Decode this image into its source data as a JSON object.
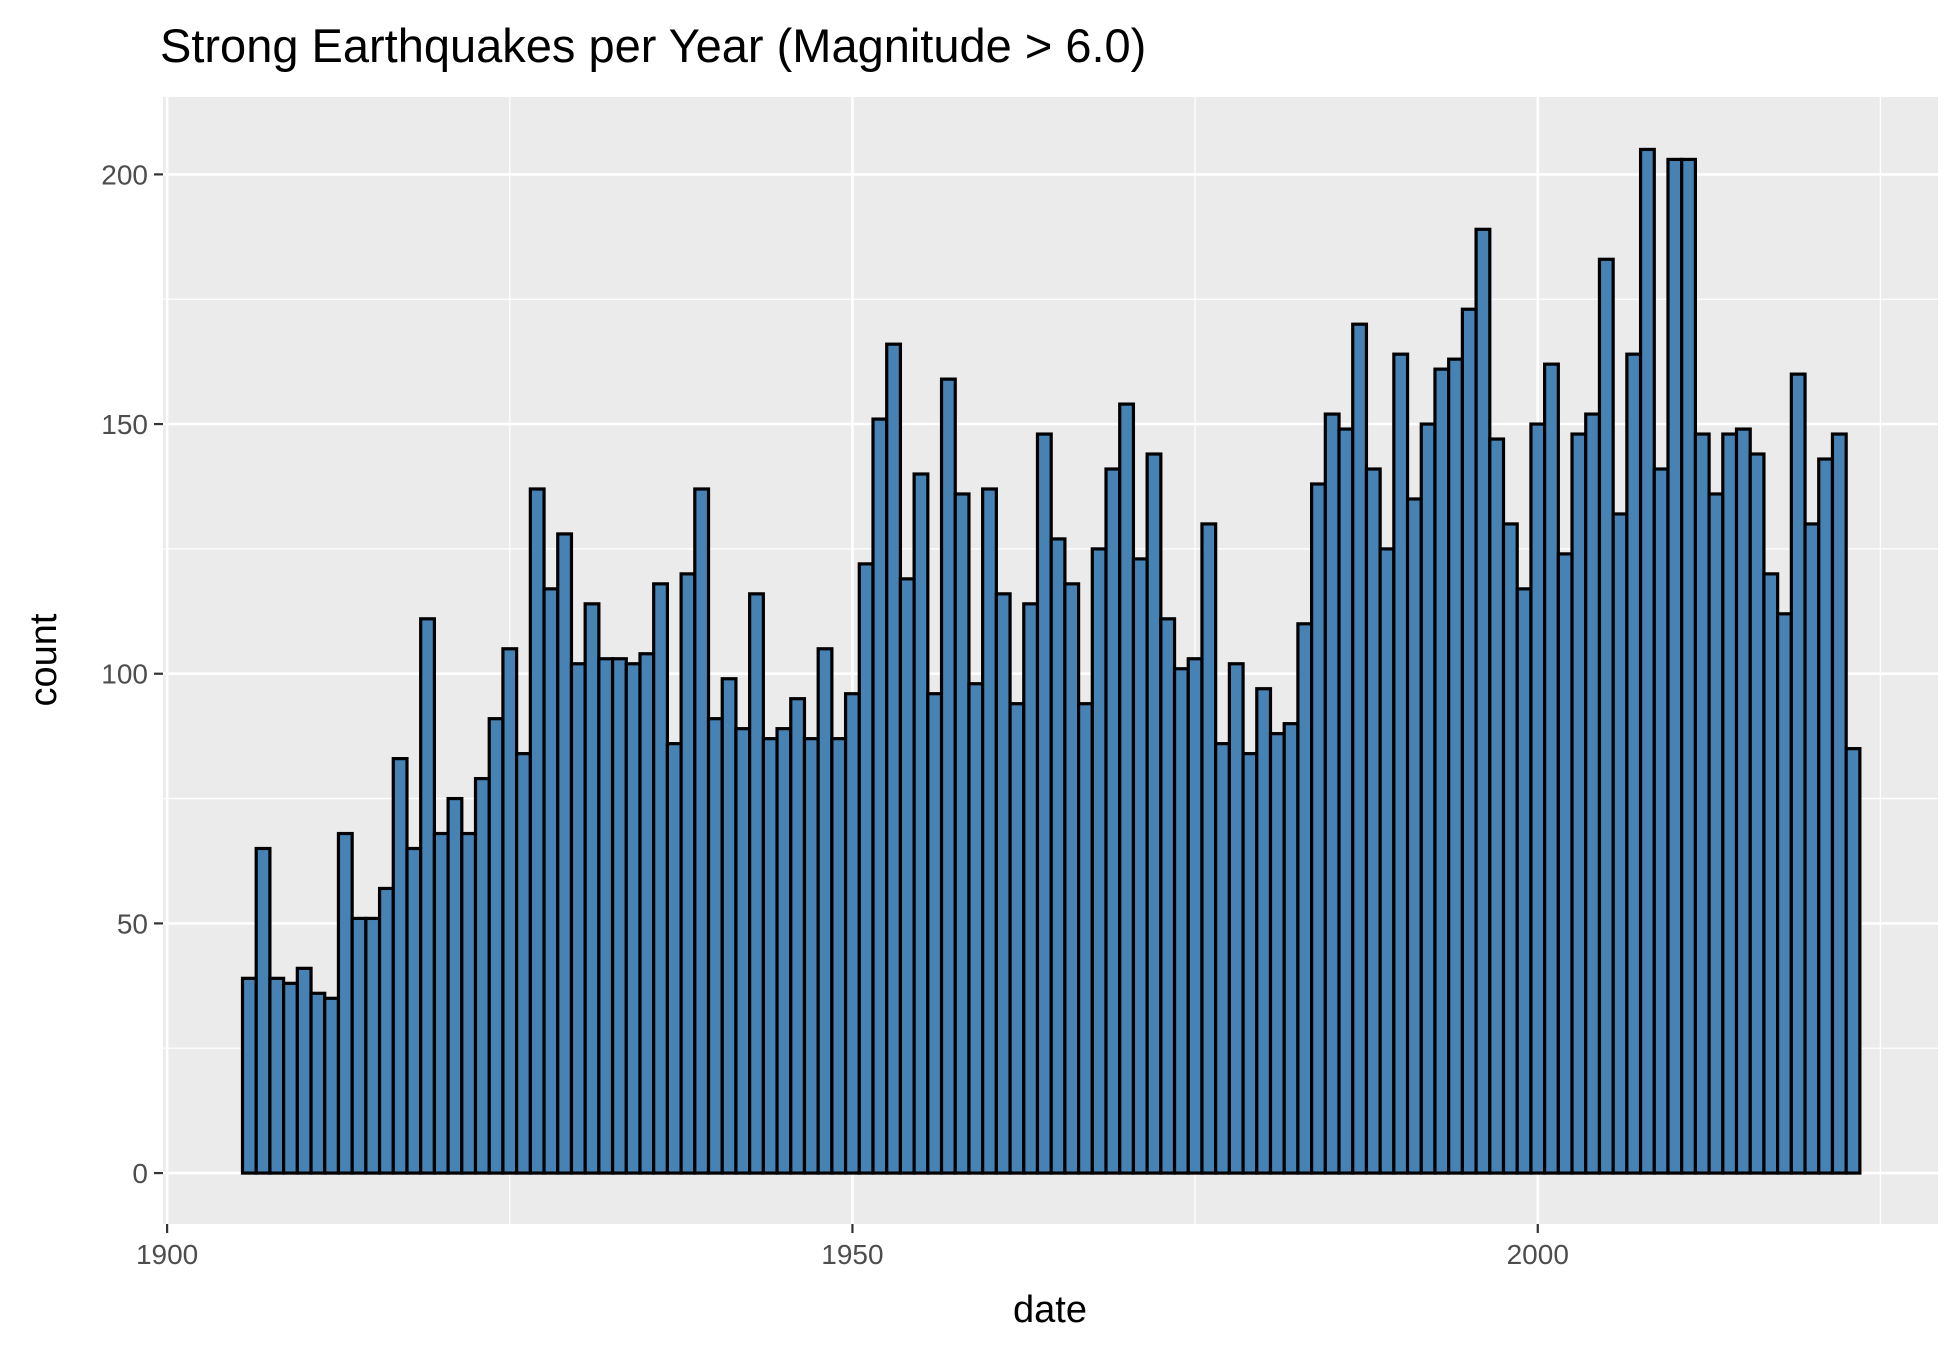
{
  "chart_data": {
    "type": "bar",
    "title": "Strong Earthquakes per Year (Magnitude > 6.0)",
    "xlabel": "date",
    "ylabel": "count",
    "xlim": [
      1899.7,
      2029.2
    ],
    "ylim": [
      -10.2,
      215.5
    ],
    "x_ticks": [
      "1900",
      "1950",
      "2000"
    ],
    "y_ticks": [
      "0",
      "50",
      "100",
      "150",
      "200"
    ],
    "grid": true,
    "legend": "none",
    "bar_fill": "#4682B4",
    "bar_outline": "#000000",
    "panel_background": "#EBEBEB",
    "bin_start": 1905.5,
    "bin_width": 1,
    "categories": [
      1906,
      1907,
      1908,
      1909,
      1910,
      1911,
      1912,
      1913,
      1914,
      1915,
      1916,
      1917,
      1918,
      1919,
      1920,
      1921,
      1922,
      1923,
      1924,
      1925,
      1926,
      1927,
      1928,
      1929,
      1930,
      1931,
      1932,
      1933,
      1934,
      1935,
      1936,
      1937,
      1938,
      1939,
      1940,
      1941,
      1942,
      1943,
      1944,
      1945,
      1946,
      1947,
      1948,
      1949,
      1950,
      1951,
      1952,
      1953,
      1954,
      1955,
      1956,
      1957,
      1958,
      1959,
      1960,
      1961,
      1962,
      1963,
      1964,
      1965,
      1966,
      1967,
      1968,
      1969,
      1970,
      1971,
      1972,
      1973,
      1974,
      1975,
      1976,
      1977,
      1978,
      1979,
      1980,
      1981,
      1982,
      1983,
      1984,
      1985,
      1986,
      1987,
      1988,
      1989,
      1990,
      1991,
      1992,
      1993,
      1994,
      1995,
      1996,
      1997,
      1998,
      1999,
      2000,
      2001,
      2002,
      2003,
      2004,
      2005,
      2006,
      2007,
      2008,
      2009,
      2010,
      2011,
      2012,
      2013,
      2014,
      2015,
      2016,
      2017,
      2018,
      2019,
      2020,
      2021,
      2022,
      2023
    ],
    "values": [
      39,
      65,
      39,
      38,
      41,
      36,
      35,
      68,
      51,
      51,
      57,
      83,
      65,
      111,
      68,
      75,
      68,
      79,
      91,
      105,
      84,
      137,
      117,
      128,
      102,
      114,
      103,
      103,
      102,
      104,
      118,
      86,
      120,
      137,
      91,
      99,
      89,
      116,
      87,
      89,
      95,
      87,
      105,
      87,
      96,
      122,
      151,
      166,
      119,
      140,
      96,
      159,
      136,
      98,
      137,
      116,
      94,
      114,
      148,
      127,
      118,
      94,
      125,
      141,
      154,
      123,
      144,
      111,
      101,
      103,
      130,
      86,
      102,
      84,
      97,
      88,
      90,
      110,
      138,
      152,
      149,
      170,
      141,
      125,
      164,
      135,
      150,
      161,
      163,
      173,
      189,
      147,
      130,
      117,
      150,
      162,
      124,
      148,
      152,
      183,
      132,
      164,
      205,
      141,
      203,
      203,
      148,
      136,
      148,
      149,
      144,
      120,
      112,
      160,
      130,
      143,
      148,
      85
    ]
  }
}
